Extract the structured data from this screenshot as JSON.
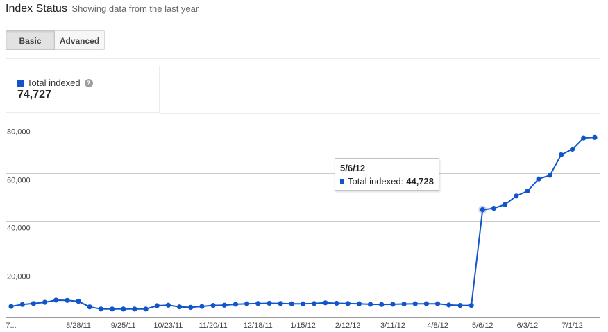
{
  "header": {
    "title": "Index Status",
    "subtitle": "Showing data from the last year"
  },
  "tabs": {
    "basic_label": "Basic",
    "advanced_label": "Advanced",
    "selected": "Basic"
  },
  "summary": {
    "metric_label": "Total indexed",
    "metric_value": "74,727",
    "help_icon_glyph": "?"
  },
  "tooltip": {
    "date": "5/6/12",
    "label": "Total indexed:",
    "value": "44,728"
  },
  "colors": {
    "series": "#1155cc",
    "grid": "#cccccc",
    "axis_text": "#444444"
  },
  "icons": {
    "help": "help-icon",
    "legend": "legend-swatch-icon"
  },
  "chart_data": {
    "type": "line",
    "title": "",
    "xlabel": "",
    "ylabel": "",
    "ylim": [
      0,
      80000
    ],
    "y_ticks": [
      "20,000",
      "40,000",
      "60,000",
      "80,000"
    ],
    "x_tick_labels": [
      "7...",
      "8/28/11",
      "9/25/11",
      "10/23/11",
      "11/20/11",
      "12/18/11",
      "1/15/12",
      "2/12/12",
      "3/11/12",
      "4/8/12",
      "5/6/12",
      "6/3/12",
      "7/1/12"
    ],
    "grid": true,
    "legend_position": "top-left",
    "highlighted_point": {
      "x": "5/6/12",
      "y": 44728
    },
    "x": [
      "7/17/11",
      "7/24/11",
      "7/31/11",
      "8/7/11",
      "8/14/11",
      "8/21/11",
      "8/28/11",
      "9/4/11",
      "9/11/11",
      "9/18/11",
      "9/25/11",
      "10/2/11",
      "10/9/11",
      "10/16/11",
      "10/23/11",
      "10/30/11",
      "11/6/11",
      "11/13/11",
      "11/20/11",
      "11/27/11",
      "12/4/11",
      "12/11/11",
      "12/18/11",
      "12/25/11",
      "1/1/12",
      "1/8/12",
      "1/15/12",
      "1/22/12",
      "1/29/12",
      "2/5/12",
      "2/12/12",
      "2/19/12",
      "2/26/12",
      "3/4/12",
      "3/11/12",
      "3/18/12",
      "3/25/12",
      "4/1/12",
      "4/8/12",
      "4/15/12",
      "4/22/12",
      "4/29/12",
      "5/6/12",
      "5/13/12",
      "5/20/12",
      "5/27/12",
      "6/3/12",
      "6/10/12",
      "6/17/12",
      "6/24/12",
      "7/1/12",
      "7/8/12",
      "7/15/12"
    ],
    "series": [
      {
        "name": "Total indexed",
        "values": [
          4600,
          5400,
          5800,
          6300,
          7200,
          7100,
          6700,
          4400,
          3500,
          3500,
          3500,
          3500,
          3500,
          4900,
          5100,
          4400,
          4200,
          4600,
          5000,
          5100,
          5500,
          5700,
          5800,
          5900,
          5800,
          5700,
          5700,
          5800,
          6100,
          5900,
          5800,
          5700,
          5500,
          5400,
          5500,
          5600,
          5700,
          5700,
          5700,
          5200,
          5000,
          5000,
          44728,
          45300,
          46900,
          50400,
          52500,
          57500,
          59000,
          67500,
          69800,
          74500,
          74727
        ]
      }
    ]
  }
}
